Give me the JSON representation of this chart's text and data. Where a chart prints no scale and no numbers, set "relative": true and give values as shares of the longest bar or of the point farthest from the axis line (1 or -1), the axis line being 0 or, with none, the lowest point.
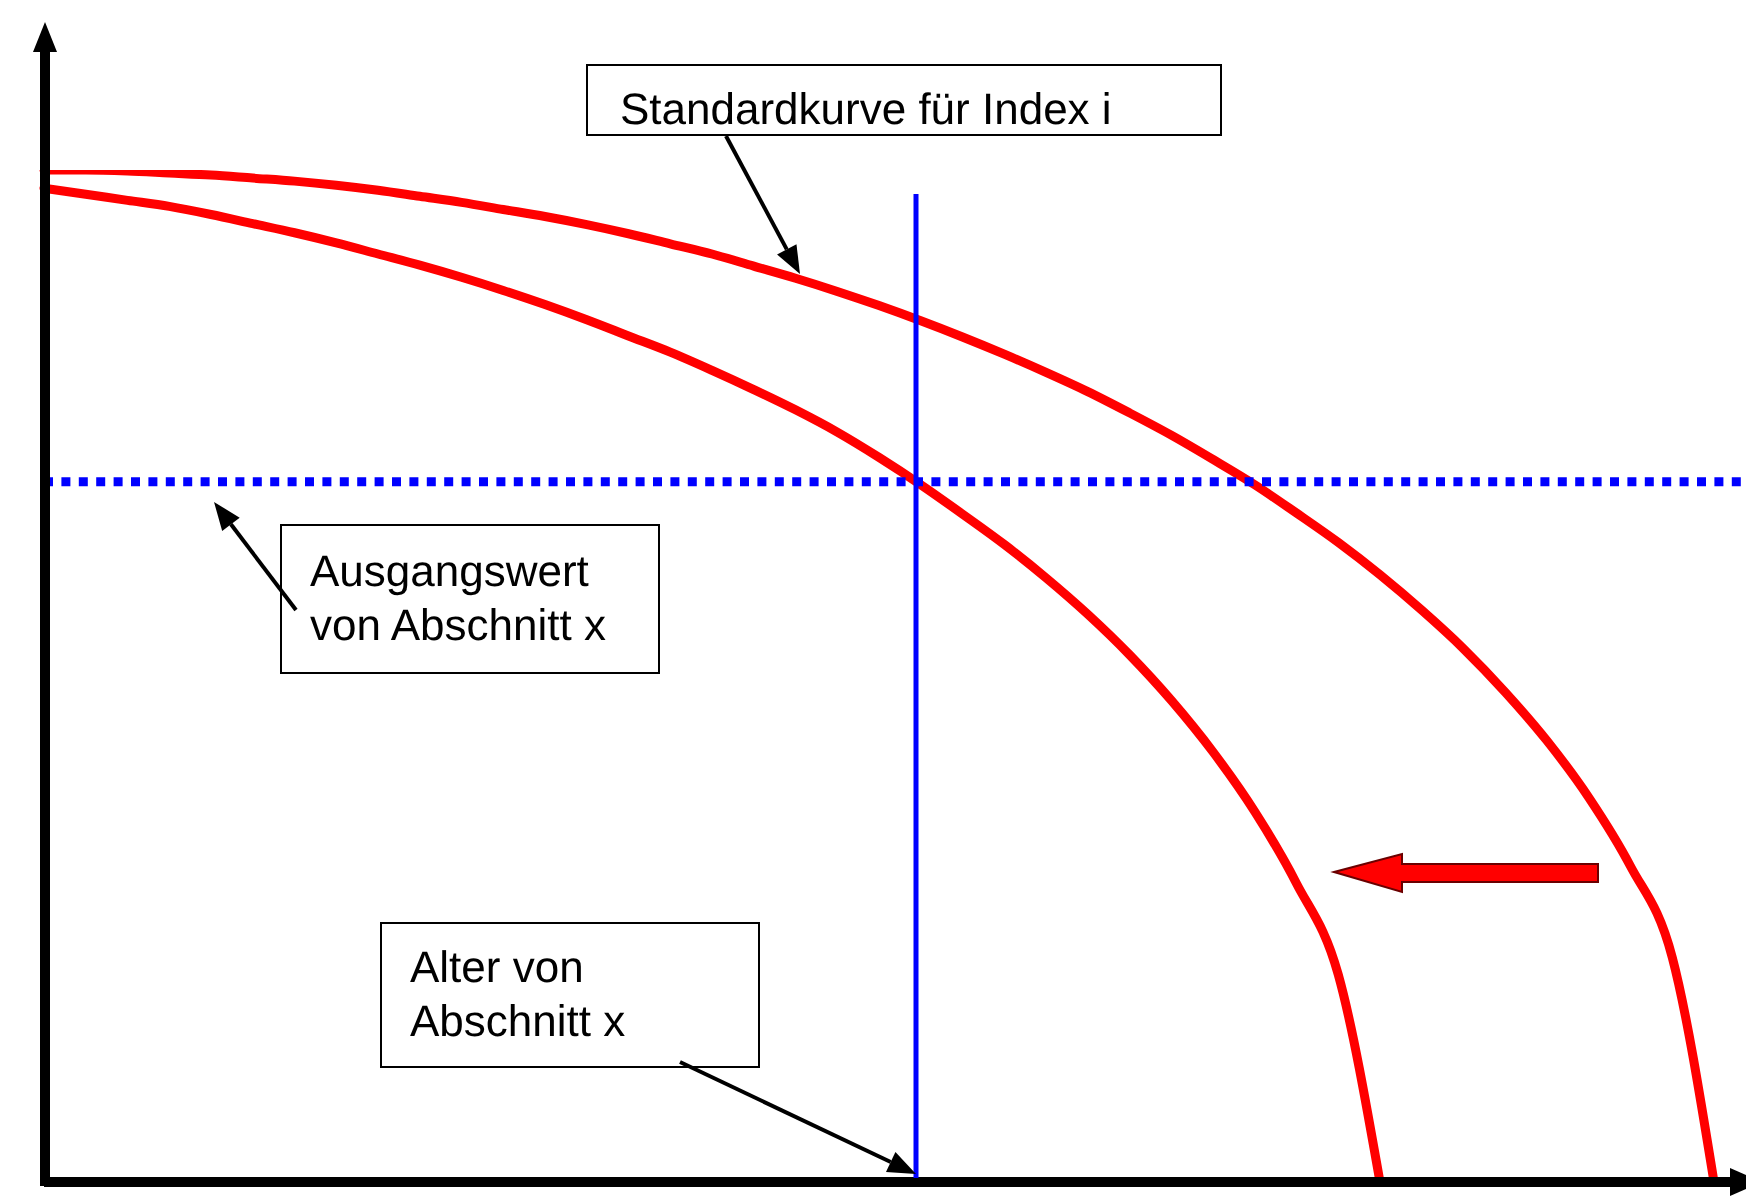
{
  "chart_data": {
    "type": "line",
    "relative": true,
    "marker": "none",
    "line_style": "solid",
    "categories": [
      null,
      null,
      null,
      null,
      null,
      null,
      null,
      null,
      null,
      null,
      null,
      null,
      null,
      null,
      null,
      null,
      null,
      null,
      null,
      null,
      null,
      null,
      null,
      null,
      null,
      null,
      null,
      null,
      null,
      null,
      null,
      null,
      null,
      null,
      null,
      null,
      null,
      null,
      null,
      null,
      null
    ],
    "series": [
      {
        "color": "#ff0000",
        "values": [
          1,
          1,
          0.999,
          0.997,
          0.995,
          0.992,
          0.989,
          0.985,
          0.98,
          0.974,
          0.968,
          0.961,
          0.954,
          0.946,
          0.937,
          0.927,
          0.917,
          0.905,
          0.893,
          0.88,
          0.866,
          0.851,
          0.835,
          0.818,
          0.8,
          0.781,
          0.76,
          0.738,
          0.714,
          0.689,
          0.661,
          0.632,
          0.6,
          0.565,
          0.527,
          0.484,
          0.436,
          0.38,
          0.312,
          0.222,
          0
        ]
      },
      {
        "color": "#ff0000",
        "values": [
          0.982,
          0.976,
          0.97,
          0.964,
          0.956,
          0.947,
          0.938,
          0.928,
          0.917,
          0.906,
          0.894,
          0.881,
          0.867,
          0.852,
          0.836,
          0.82,
          0.802,
          0.783,
          0.763,
          0.741,
          0.716,
          0.689,
          0.66,
          0.63,
          0.597,
          0.561,
          0.521,
          0.476,
          0.425,
          0.366,
          0.295,
          0.205,
          0,
          null,
          null,
          null,
          null,
          null,
          null,
          null,
          null
        ]
      }
    ],
    "ref_lines": [
      {
        "axis": "y",
        "value": 0.692,
        "color": "#0000ff",
        "line_style": "dotted"
      }
    ],
    "annotations": [
      "Standardkurve für Index i",
      "Ausgangswert von Abschnitt x",
      "Alter von Abschnitt x"
    ]
  }
}
